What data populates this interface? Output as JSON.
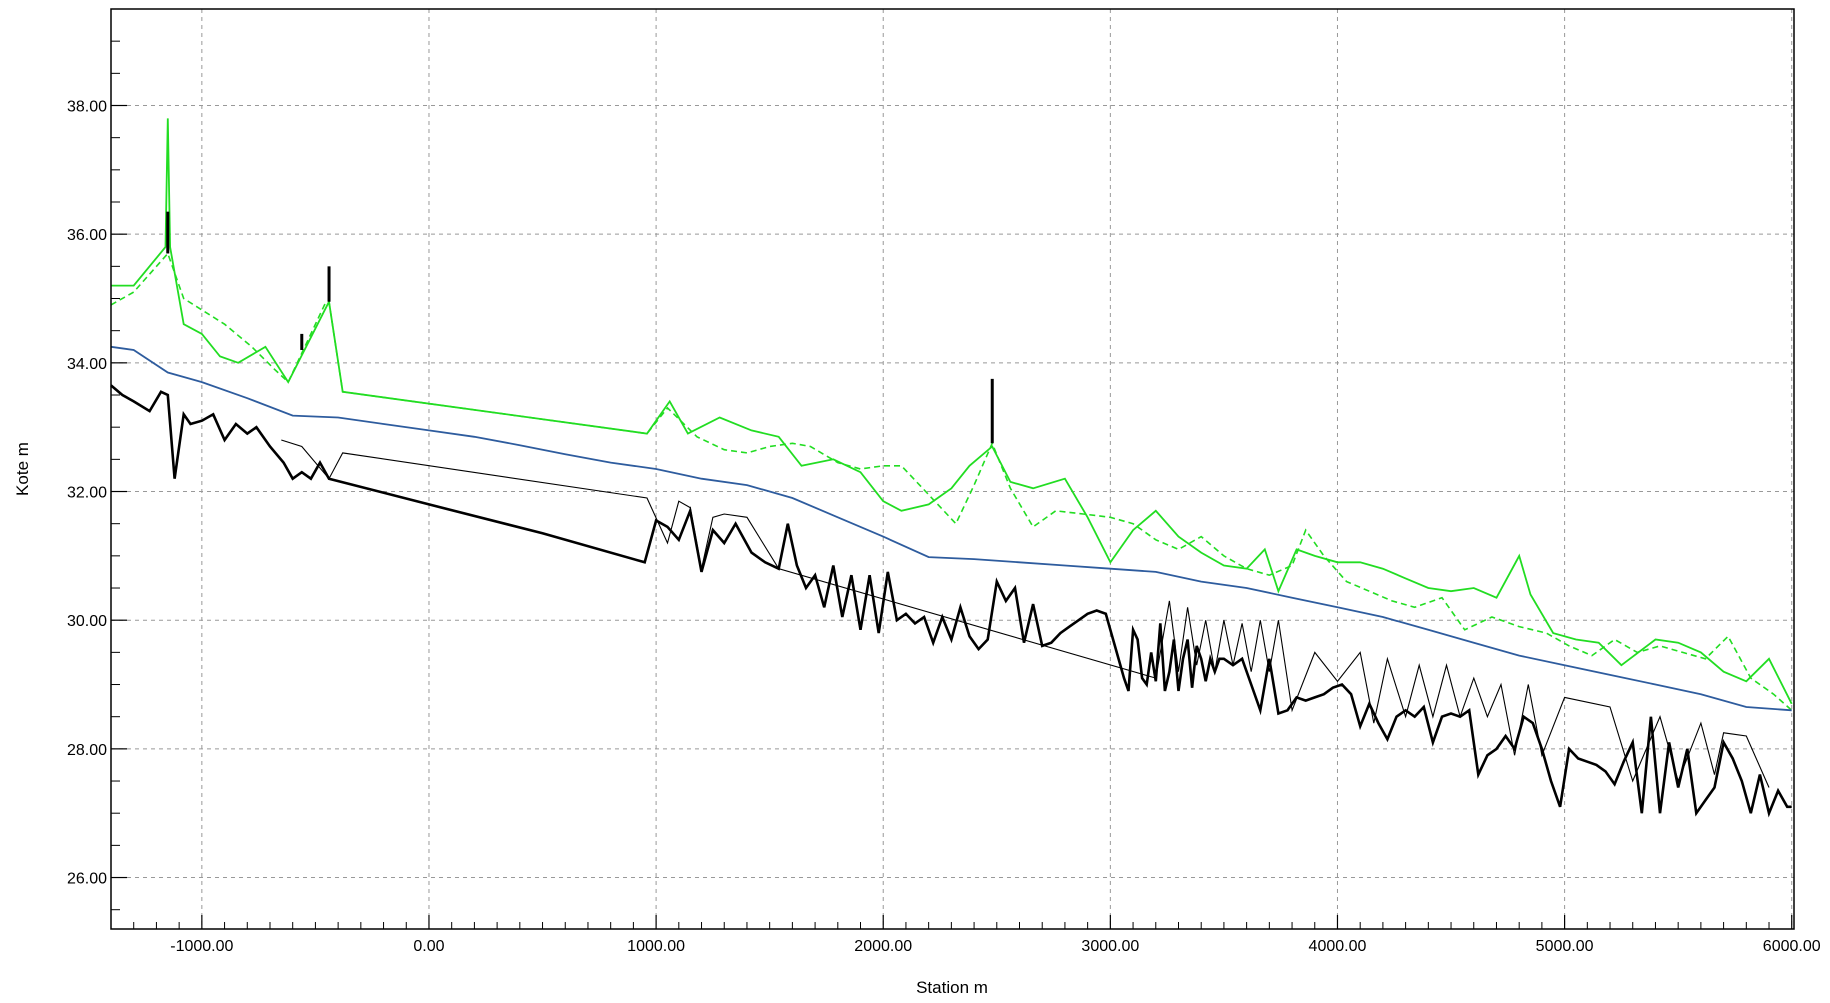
{
  "chart_data": {
    "type": "line",
    "xlabel": "Station m",
    "ylabel": "Kote m",
    "xlim": [
      -1400,
      6010
    ],
    "ylim": [
      25.2,
      39.5
    ],
    "grid": true,
    "xticks": [
      -1000,
      0,
      1000,
      2000,
      3000,
      4000,
      5000,
      6000
    ],
    "xtick_labels": [
      "-1000.00",
      "0.00",
      "1000.00",
      "2000.00",
      "3000.00",
      "4000.00",
      "5000.00",
      "6000.00"
    ],
    "yticks": [
      26,
      28,
      30,
      32,
      34,
      36,
      38
    ],
    "ytick_labels": [
      "26.00",
      "28.00",
      "30.00",
      "32.00",
      "34.00",
      "36.00",
      "38.00"
    ],
    "colors": {
      "green": "#22dd22",
      "blue": "#2e5c9e",
      "black": "#000000",
      "grid": "#999999"
    },
    "series": [
      {
        "style": "green-solid",
        "x": [
          -1400,
          -1300,
          -1160,
          -1150,
          -1140,
          -1080,
          -1000,
          -920,
          -840,
          -720,
          -620,
          -440,
          -380,
          960,
          1060,
          1140,
          1280,
          1420,
          1540,
          1640,
          1780,
          1900,
          2000,
          2080,
          2200,
          2300,
          2380,
          2480,
          2560,
          2660,
          2800,
          2900,
          3000,
          3100,
          3200,
          3300,
          3400,
          3500,
          3600,
          3680,
          3740,
          3820,
          3900,
          4000,
          4100,
          4200,
          4300,
          4400,
          4500,
          4600,
          4700,
          4800,
          4850,
          4950,
          5050,
          5150,
          5250,
          5400,
          5500,
          5600,
          5700,
          5800,
          5900,
          6000
        ],
        "y": [
          35.2,
          35.2,
          35.8,
          37.8,
          35.8,
          34.6,
          34.45,
          34.1,
          34.0,
          34.25,
          33.7,
          34.95,
          33.55,
          32.9,
          33.4,
          32.9,
          33.15,
          32.95,
          32.85,
          32.4,
          32.5,
          32.3,
          31.85,
          31.7,
          31.8,
          32.05,
          32.4,
          32.7,
          32.15,
          32.05,
          32.2,
          31.6,
          30.9,
          31.4,
          31.7,
          31.3,
          31.05,
          30.85,
          30.8,
          31.1,
          30.45,
          31.1,
          31.0,
          30.9,
          30.9,
          30.8,
          30.65,
          30.5,
          30.45,
          30.5,
          30.35,
          31.0,
          30.4,
          29.8,
          29.7,
          29.65,
          29.3,
          29.7,
          29.65,
          29.5,
          29.2,
          29.05,
          29.4,
          28.7
        ]
      },
      {
        "style": "green-dashed",
        "x": [
          -1400,
          -1300,
          -1150,
          -1080,
          -900,
          -780,
          -680,
          -620,
          -460,
          -440,
          -380,
          960,
          1050,
          1180,
          1300,
          1400,
          1500,
          1600,
          1680,
          1800,
          1900,
          2000,
          2080,
          2200,
          2320,
          2400,
          2480,
          2560,
          2660,
          2760,
          2880,
          3000,
          3100,
          3200,
          3300,
          3400,
          3500,
          3600,
          3700,
          3800,
          3860,
          3940,
          4040,
          4140,
          4240,
          4340,
          4460,
          4560,
          4680,
          4800,
          4920,
          5020,
          5120,
          5220,
          5320,
          5420,
          5520,
          5620,
          5720,
          5820,
          5920,
          6000
        ],
        "y": [
          34.9,
          35.1,
          35.7,
          35.0,
          34.6,
          34.25,
          33.9,
          33.7,
          34.9,
          34.95,
          33.55,
          32.9,
          33.3,
          32.85,
          32.65,
          32.6,
          32.7,
          32.75,
          32.7,
          32.45,
          32.35,
          32.4,
          32.4,
          31.95,
          31.5,
          32.1,
          32.75,
          32.05,
          31.45,
          31.7,
          31.65,
          31.6,
          31.5,
          31.25,
          31.1,
          31.3,
          31.0,
          30.8,
          30.7,
          30.85,
          31.4,
          31.0,
          30.6,
          30.45,
          30.3,
          30.2,
          30.35,
          29.85,
          30.05,
          29.9,
          29.8,
          29.6,
          29.45,
          29.7,
          29.5,
          29.6,
          29.5,
          29.4,
          29.75,
          29.1,
          28.85,
          28.6
        ]
      },
      {
        "style": "blue",
        "x": [
          -1400,
          -1300,
          -1150,
          -1000,
          -800,
          -600,
          -400,
          -200,
          0,
          200,
          400,
          600,
          800,
          1000,
          1200,
          1400,
          1600,
          1800,
          2000,
          2200,
          2400,
          2600,
          2800,
          3000,
          3200,
          3400,
          3600,
          3800,
          4000,
          4200,
          4400,
          4600,
          4800,
          5000,
          5200,
          5400,
          5600,
          5800,
          6000
        ],
        "y": [
          34.25,
          34.2,
          33.85,
          33.7,
          33.45,
          33.18,
          33.15,
          33.05,
          32.95,
          32.85,
          32.72,
          32.58,
          32.45,
          32.35,
          32.2,
          32.1,
          31.9,
          31.6,
          31.3,
          30.98,
          30.95,
          30.9,
          30.85,
          30.8,
          30.75,
          30.6,
          30.5,
          30.35,
          30.2,
          30.05,
          29.85,
          29.65,
          29.45,
          29.3,
          29.15,
          29.0,
          28.85,
          28.65,
          28.6
        ]
      },
      {
        "style": "black-thick",
        "x": [
          -1400,
          -1350,
          -1300,
          -1230,
          -1180,
          -1150,
          -1120,
          -1080,
          -1050,
          -1000,
          -950,
          -900,
          -850,
          -800,
          -760,
          -700,
          -640,
          -600,
          -560,
          -520,
          -480,
          -440,
          0,
          500,
          950,
          1000,
          1050,
          1100,
          1150,
          1200,
          1250,
          1300,
          1350,
          1420,
          1480,
          1540,
          1580,
          1620,
          1660,
          1700,
          1740,
          1780,
          1820,
          1860,
          1900,
          1940,
          1980,
          2020,
          2060,
          2100,
          2140,
          2180,
          2220,
          2260,
          2300,
          2340,
          2380,
          2420,
          2460,
          2500,
          2540,
          2580,
          2620,
          2660,
          2700,
          2740,
          2780,
          2820,
          2860,
          2900,
          2940,
          2980,
          3020,
          3060,
          3080,
          3100,
          3120,
          3140,
          3160,
          3180,
          3200,
          3220,
          3240,
          3260,
          3280,
          3300,
          3320,
          3340,
          3360,
          3380,
          3400,
          3420,
          3440,
          3460,
          3480,
          3500,
          3540,
          3580,
          3620,
          3660,
          3700,
          3740,
          3780,
          3820,
          3860,
          3900,
          3940,
          3980,
          4020,
          4060,
          4100,
          4140,
          4180,
          4220,
          4260,
          4300,
          4340,
          4380,
          4420,
          4460,
          4500,
          4540,
          4580,
          4620,
          4660,
          4700,
          4740,
          4780,
          4820,
          4860,
          4900,
          4940,
          4980,
          5020,
          5060,
          5100,
          5140,
          5180,
          5220,
          5260,
          5300,
          5340,
          5380,
          5420,
          5460,
          5500,
          5540,
          5580,
          5620,
          5660,
          5700,
          5740,
          5780,
          5820,
          5860,
          5900,
          5940,
          5980,
          6000
        ],
        "y": [
          33.65,
          33.5,
          33.4,
          33.25,
          33.55,
          33.5,
          32.2,
          33.2,
          33.05,
          33.1,
          33.2,
          32.8,
          33.05,
          32.9,
          33.0,
          32.7,
          32.45,
          32.2,
          32.3,
          32.2,
          32.45,
          32.2,
          31.8,
          31.35,
          30.9,
          31.55,
          31.45,
          31.25,
          31.7,
          30.75,
          31.4,
          31.2,
          31.5,
          31.05,
          30.9,
          30.8,
          31.5,
          30.85,
          30.5,
          30.7,
          30.2,
          30.85,
          30.05,
          30.7,
          29.85,
          30.7,
          29.8,
          30.75,
          30.0,
          30.1,
          29.95,
          30.05,
          29.65,
          30.05,
          29.7,
          30.2,
          29.75,
          29.55,
          29.7,
          30.6,
          30.3,
          30.5,
          29.65,
          30.25,
          29.6,
          29.65,
          29.8,
          29.9,
          30.0,
          30.1,
          30.15,
          30.1,
          29.6,
          29.1,
          28.9,
          29.85,
          29.7,
          29.1,
          29.0,
          29.5,
          29.05,
          29.95,
          28.9,
          29.2,
          29.7,
          28.9,
          29.4,
          29.7,
          28.95,
          29.6,
          29.4,
          29.05,
          29.4,
          29.2,
          29.4,
          29.4,
          29.3,
          29.4,
          29.0,
          28.6,
          29.4,
          28.55,
          28.6,
          28.8,
          28.75,
          28.8,
          28.85,
          28.95,
          29.0,
          28.85,
          28.35,
          28.7,
          28.4,
          28.15,
          28.5,
          28.6,
          28.5,
          28.65,
          28.1,
          28.5,
          28.55,
          28.5,
          28.6,
          27.6,
          27.9,
          28.0,
          28.2,
          28.0,
          28.5,
          28.4,
          28.0,
          27.5,
          27.1,
          28.0,
          27.85,
          27.8,
          27.75,
          27.65,
          27.45,
          27.8,
          28.1,
          27.0,
          28.5,
          27.0,
          28.1,
          27.4,
          28.0,
          27.0,
          27.2,
          27.4,
          28.1,
          27.85,
          27.5,
          27.0,
          27.6,
          27.0,
          27.35,
          27.1,
          27.1
        ]
      },
      {
        "style": "black-thin",
        "x": [
          -650,
          -560,
          -440,
          -380,
          960,
          1050,
          1100,
          1150,
          1200,
          1250,
          1300,
          1400,
          1540,
          3200,
          3260,
          3300,
          3340,
          3380,
          3420,
          3460,
          3500,
          3540,
          3580,
          3620,
          3660,
          3700,
          3740,
          3800,
          3900,
          4000,
          4100,
          4160,
          4220,
          4300,
          4360,
          4420,
          4480,
          4540,
          4600,
          4660,
          4720,
          4780,
          4840,
          4900,
          5000,
          5200,
          5300,
          5420,
          5500,
          5600,
          5660,
          5700,
          5800,
          5900
        ],
        "y": [
          32.8,
          32.7,
          32.2,
          32.6,
          31.9,
          31.2,
          31.85,
          31.75,
          30.8,
          31.6,
          31.65,
          31.6,
          30.8,
          29.1,
          30.3,
          29.2,
          30.2,
          29.3,
          30.0,
          29.2,
          30.0,
          29.3,
          29.95,
          29.2,
          30.0,
          29.2,
          30.0,
          28.6,
          29.5,
          29.05,
          29.5,
          28.4,
          29.4,
          28.5,
          29.3,
          28.5,
          29.3,
          28.5,
          29.1,
          28.5,
          29.0,
          27.9,
          29.0,
          27.9,
          28.8,
          28.65,
          27.5,
          28.5,
          27.5,
          28.4,
          27.6,
          28.25,
          28.2,
          27.4
        ]
      }
    ],
    "spikes": [
      {
        "style": "black",
        "x": -1150,
        "y0": 35.7,
        "y1": 36.35
      },
      {
        "style": "black",
        "x": -560,
        "y0": 34.2,
        "y1": 34.45
      },
      {
        "style": "black",
        "x": -440,
        "y0": 34.95,
        "y1": 35.5
      },
      {
        "style": "black",
        "x": 2480,
        "y0": 32.75,
        "y1": 33.75
      }
    ]
  }
}
